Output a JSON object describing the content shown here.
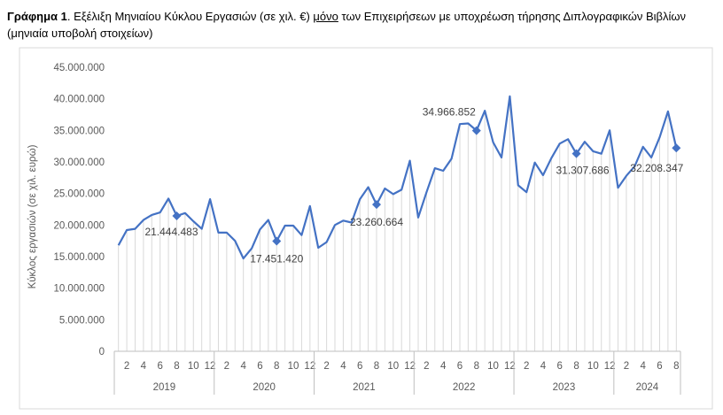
{
  "caption": {
    "lead": "Γράφημα 1",
    "part1": ". Εξέλιξη Μηνιαίου Κύκλου Εργασιών (σε χιλ. €) ",
    "underlined": "μόνο",
    "part2": " των Επιχειρήσεων με υποχρέωση τήρησης Διπλογραφικών Βιβλίων (μηνιαία υποβολή στοιχείων)"
  },
  "chart_data": {
    "type": "line",
    "title": "",
    "xlabel": "",
    "ylabel": "Κύκλος εργασιών (σε χιλ. ευρώ)",
    "ylim": [
      0,
      45000000
    ],
    "y_ticks": [
      "0",
      "5.000.000",
      "10.000.000",
      "15.000.000",
      "20.000.000",
      "25.000.000",
      "30.000.000",
      "35.000.000",
      "40.000.000",
      "45.000.000"
    ],
    "grid": false,
    "line_color": "#4472C4",
    "years": [
      {
        "label": "2019",
        "months": [
          "2",
          "4",
          "6",
          "8",
          "10",
          "12"
        ]
      },
      {
        "label": "2020",
        "months": [
          "2",
          "4",
          "6",
          "8",
          "10",
          "12"
        ]
      },
      {
        "label": "2021",
        "months": [
          "2",
          "4",
          "6",
          "8",
          "10",
          "12"
        ]
      },
      {
        "label": "2022",
        "months": [
          "2",
          "4",
          "6",
          "8",
          "10",
          "12"
        ]
      },
      {
        "label": "2023",
        "months": [
          "2",
          "4",
          "6",
          "8",
          "10",
          "12"
        ]
      },
      {
        "label": "2024",
        "months": [
          "2",
          "4",
          "6",
          "8"
        ]
      }
    ],
    "values": [
      16800000,
      19200000,
      19400000,
      20800000,
      21600000,
      22000000,
      24200000,
      21444483,
      21900000,
      20600000,
      19400000,
      24100000,
      18800000,
      18800000,
      17500000,
      14700000,
      16300000,
      19300000,
      20800000,
      17451420,
      19900000,
      19900000,
      18400000,
      23000000,
      16400000,
      17300000,
      20000000,
      20700000,
      20400000,
      24100000,
      26000000,
      23260664,
      25800000,
      24900000,
      25600000,
      30200000,
      21200000,
      25200000,
      29000000,
      28600000,
      30500000,
      36000000,
      36100000,
      34966852,
      38100000,
      33100000,
      30700000,
      40400000,
      26300000,
      25200000,
      29900000,
      27900000,
      30600000,
      32900000,
      33600000,
      31307686,
      33200000,
      31700000,
      31300000,
      35000000,
      25900000,
      27800000,
      29300000,
      32400000,
      30700000,
      33900000,
      38000000,
      32208347
    ],
    "annotations": [
      {
        "index": 7,
        "label": "21.444.483"
      },
      {
        "index": 19,
        "label": "17.451.420"
      },
      {
        "index": 31,
        "label": "23.260.664"
      },
      {
        "index": 43,
        "label": "34.966.852"
      },
      {
        "index": 55,
        "label": "31.307.686"
      },
      {
        "index": 67,
        "label": "32.208.347"
      }
    ]
  }
}
